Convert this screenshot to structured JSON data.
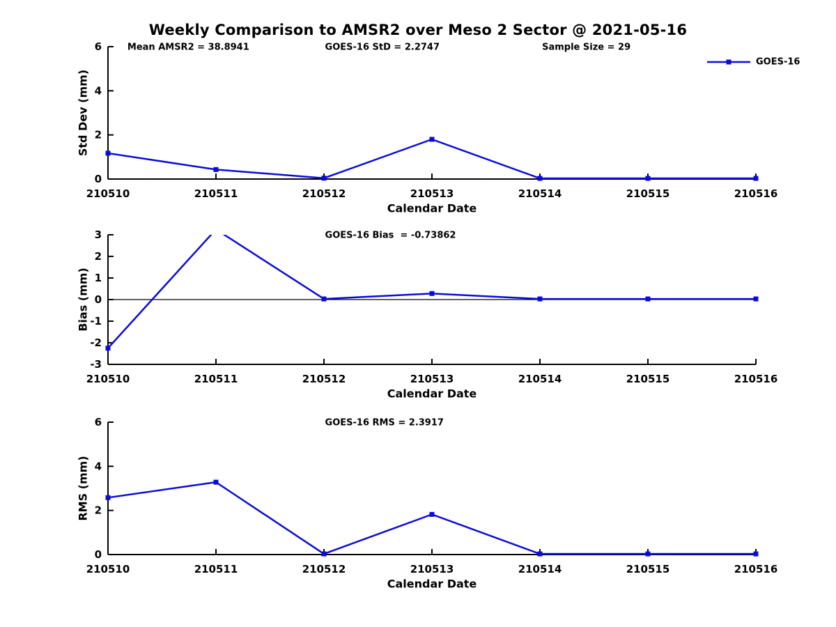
{
  "figure_title": "Weekly Comparison to AMSR2 over Meso 2 Sector @ 2021-05-16",
  "colors": {
    "series": "#0b0bd8",
    "axis": "#000000",
    "text": "#000000",
    "background": "#ffffff"
  },
  "legend": {
    "label": "GOES-16",
    "marker": "filled-square",
    "position": "top-right"
  },
  "chart_data": [
    {
      "type": "line",
      "ylabel": "Std Dev (mm)",
      "xlabel": "Calendar Date",
      "ylim": [
        0,
        6
      ],
      "yticks": [
        0,
        2,
        4,
        6
      ],
      "categories": [
        "210510",
        "210511",
        "210512",
        "210513",
        "210514",
        "210515",
        "210516"
      ],
      "series": [
        {
          "name": "GOES-16",
          "values": [
            1.17,
            0.43,
            0.04,
            1.8,
            0.03,
            0.03,
            0.03
          ]
        }
      ],
      "annotations": [
        {
          "text": "Mean AMSR2 = 38.8941",
          "xfrac": 0.03
        },
        {
          "text": "GOES-16 StD = 2.2747",
          "xfrac": 0.335
        },
        {
          "text": "Sample Size = 29",
          "xfrac": 0.67
        }
      ],
      "zero_line": false,
      "show_legend": true,
      "grid": false
    },
    {
      "type": "line",
      "ylabel": "Bias (mm)",
      "xlabel": "Calendar Date",
      "ylim": [
        -3,
        3
      ],
      "yticks": [
        -3,
        -2,
        -1,
        0,
        1,
        2,
        3
      ],
      "categories": [
        "210510",
        "210511",
        "210512",
        "210513",
        "210514",
        "210515",
        "210516"
      ],
      "series": [
        {
          "name": "GOES-16",
          "values": [
            -2.25,
            3.25,
            0.03,
            0.28,
            0.03,
            0.03,
            0.03
          ],
          "note": "value at 210511 exceeds ylim and is clipped at top"
        }
      ],
      "annotations": [
        {
          "text": "GOES-16 Bias  = -0.73862",
          "xfrac": 0.335
        }
      ],
      "zero_line": true,
      "show_legend": false,
      "grid": false
    },
    {
      "type": "line",
      "ylabel": "RMS (mm)",
      "xlabel": "Calendar Date",
      "ylim": [
        0,
        6
      ],
      "yticks": [
        0,
        2,
        4,
        6
      ],
      "categories": [
        "210510",
        "210511",
        "210512",
        "210513",
        "210514",
        "210515",
        "210516"
      ],
      "series": [
        {
          "name": "GOES-16",
          "values": [
            2.58,
            3.28,
            0.03,
            1.82,
            0.03,
            0.03,
            0.03
          ]
        }
      ],
      "annotations": [
        {
          "text": "GOES-16 RMS = 2.3917",
          "xfrac": 0.335
        }
      ],
      "zero_line": false,
      "show_legend": false,
      "grid": false
    }
  ]
}
